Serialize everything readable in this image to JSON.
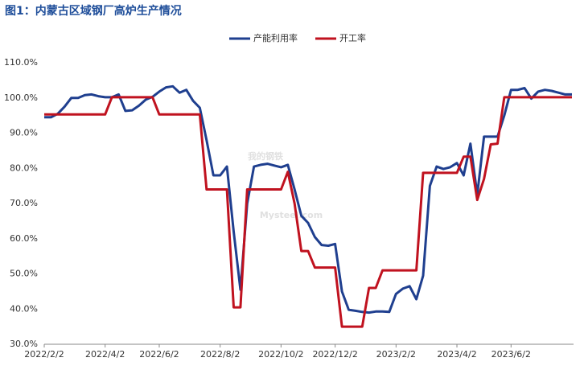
{
  "chart_data": {
    "type": "line",
    "title": "图1：内蒙古区域钢厂高炉生产情况",
    "watermark": [
      "我的钢铁",
      "Mysteel.com"
    ],
    "categories": [
      "2022/2/2",
      null,
      null,
      null,
      null,
      null,
      null,
      null,
      null,
      "2022/4/2",
      null,
      null,
      null,
      null,
      null,
      null,
      null,
      "2022/6/2",
      null,
      null,
      null,
      null,
      null,
      null,
      null,
      null,
      "2022/8/2",
      null,
      null,
      null,
      null,
      null,
      null,
      null,
      null,
      "2022/10/2",
      null,
      null,
      null,
      null,
      null,
      null,
      null,
      "2022/12/2",
      null,
      null,
      null,
      null,
      null,
      null,
      null,
      null,
      "2023/2/2",
      null,
      null,
      null,
      null,
      null,
      null,
      null,
      null,
      "2023/4/2",
      null,
      null,
      null,
      null,
      null,
      null,
      null,
      "2023/6/2",
      null,
      null,
      null,
      null,
      null,
      null,
      null,
      null,
      null
    ],
    "series": [
      {
        "name": "产能利用率",
        "color": "#1f3f8f",
        "values": [
          94.5,
          94.5,
          95.5,
          97.5,
          100,
          100,
          100.8,
          101,
          100.5,
          100.2,
          100.2,
          101,
          96.3,
          96.5,
          97.8,
          99.5,
          100.3,
          101.8,
          103,
          103.3,
          101.5,
          102.3,
          99.2,
          97.2,
          88,
          78,
          78,
          80.5,
          62,
          45.5,
          70,
          80.5,
          81,
          81.3,
          80.8,
          80.3,
          81,
          74,
          66.5,
          64.5,
          60.5,
          58.2,
          58,
          58.5,
          45,
          39.8,
          39.5,
          39.2,
          39,
          39.3,
          39.3,
          39.2,
          44.3,
          45.8,
          46.5,
          42.8,
          49.5,
          75,
          80.5,
          79.8,
          80.3,
          81.5,
          78,
          87,
          72.5,
          89,
          89,
          89,
          95,
          102.3,
          102.3,
          102.8,
          99.8,
          101.8,
          102.3,
          102,
          101.5,
          101,
          101
        ]
      },
      {
        "name": "开工率",
        "color": "#c0121f",
        "values": [
          95.3,
          95.3,
          95.3,
          95.3,
          95.3,
          95.3,
          95.3,
          95.3,
          95.3,
          95.3,
          100.2,
          100.2,
          100.2,
          100.2,
          100.2,
          100.2,
          100.2,
          95.3,
          95.3,
          95.3,
          95.3,
          95.3,
          95.3,
          95.3,
          74,
          74,
          74,
          74,
          40.5,
          40.5,
          74,
          74,
          74,
          74,
          74,
          74,
          79,
          70,
          56.5,
          56.5,
          51.8,
          51.8,
          51.8,
          51.8,
          35,
          35,
          35,
          35,
          46,
          46,
          51,
          51,
          51,
          51,
          51,
          51,
          78.7,
          78.7,
          78.7,
          78.7,
          78.7,
          78.7,
          83.3,
          83.3,
          71,
          77,
          86.8,
          87,
          100.2,
          100.2,
          100.2,
          100.2,
          100.2,
          100.2,
          100.2,
          100.2,
          100.2,
          100.2,
          100.2
        ]
      }
    ],
    "ylim": [
      30,
      110
    ],
    "yticks": [
      {
        "value": 30,
        "label": "30.0%"
      },
      {
        "value": 40,
        "label": "40.0%"
      },
      {
        "value": 50,
        "label": "50.0%"
      },
      {
        "value": 60,
        "label": "60.0%"
      },
      {
        "value": 70,
        "label": "70.0%"
      },
      {
        "value": 80,
        "label": "80.0%"
      },
      {
        "value": 90,
        "label": "90.0%"
      },
      {
        "value": 100,
        "label": "100.0%"
      },
      {
        "value": 110,
        "label": "110.0%"
      }
    ],
    "grid": false
  }
}
